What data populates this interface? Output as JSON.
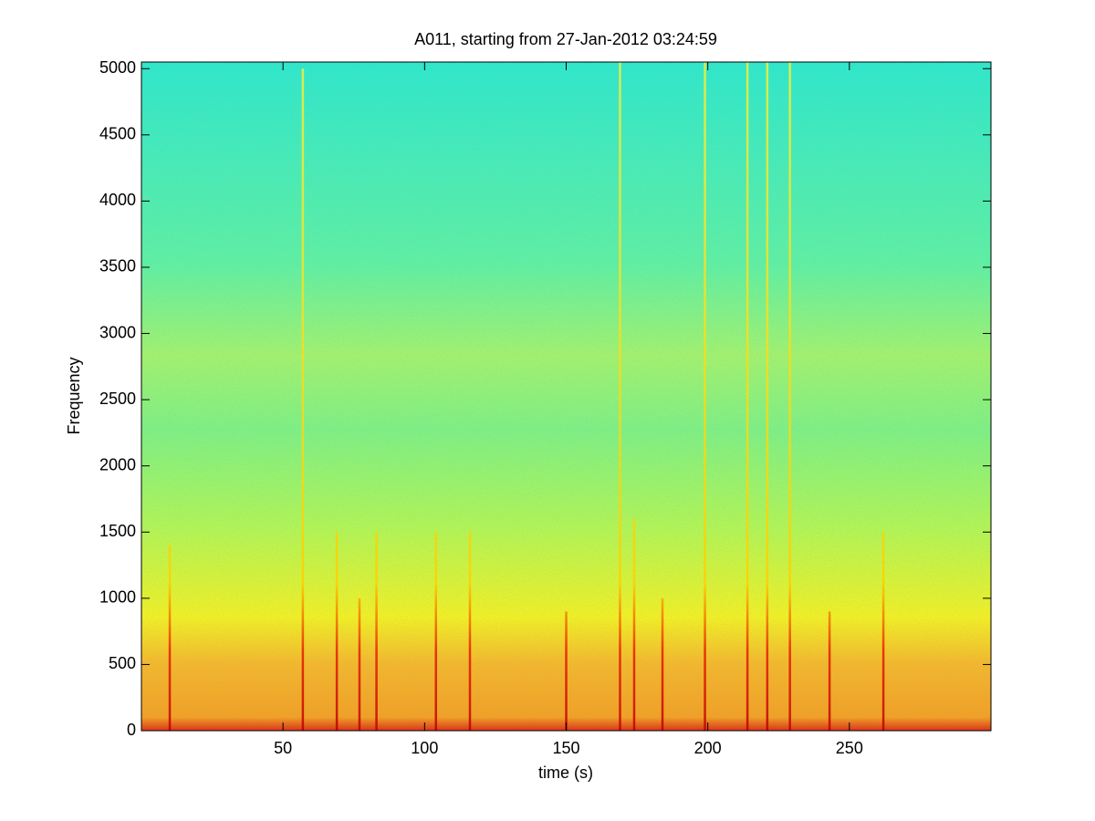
{
  "chart_data": {
    "type": "spectrogram",
    "title": "A011, starting from 27-Jan-2012 03:24:59",
    "x_label": "time (s)",
    "y_label": "Frequency",
    "xlim": [
      0,
      300
    ],
    "ylim": [
      0,
      5050
    ],
    "xticks": [
      50,
      100,
      150,
      200,
      250
    ],
    "yticks": [
      0,
      500,
      1000,
      1500,
      2000,
      2500,
      3000,
      3500,
      4000,
      4500,
      5000
    ],
    "colormap": "jet",
    "events": {
      "time": [
        10,
        57,
        69,
        77,
        83,
        104,
        116,
        150,
        169,
        174,
        184,
        199,
        214,
        221,
        229,
        243,
        262
      ],
      "top": [
        1400,
        5000,
        1500,
        1000,
        1500,
        1500,
        1500,
        900,
        5050,
        1600,
        1000,
        5050,
        5050,
        5050,
        5050,
        900,
        1500
      ]
    }
  }
}
